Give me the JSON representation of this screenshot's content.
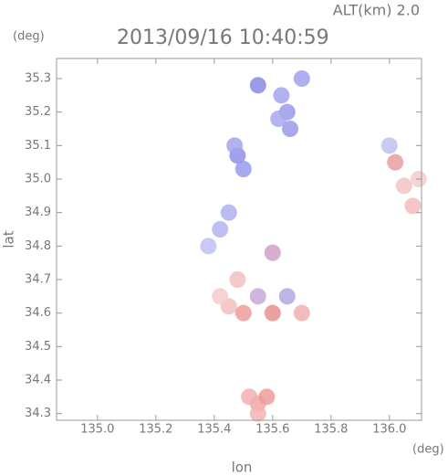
{
  "chart_data": {
    "type": "scatter",
    "title": "2013/09/16 10:40:59",
    "altitude_label": "ALT(km) 2.0",
    "y_unit": "(deg)",
    "x_unit": "(deg)",
    "xlabel": "lon",
    "ylabel": "lat",
    "xlim": [
      134.86,
      136.11
    ],
    "ylim": [
      34.28,
      35.36
    ],
    "xticks": [
      {
        "value": 135,
        "label": "135.0"
      },
      135.2,
      135.4,
      135.6,
      135.8,
      {
        "value": 136,
        "label": "136.0"
      }
    ],
    "yticks": [
      35.3,
      35.2,
      35.1,
      {
        "value": 35,
        "label": "35.0"
      },
      34.9,
      34.8,
      34.7,
      34.6,
      34.5,
      34.4,
      34.3
    ],
    "x": [
      135.65,
      135.63,
      135.66,
      135.62,
      135.55,
      135.7,
      135.48,
      135.5,
      135.47,
      135.42,
      135.38,
      135.45,
      135.45,
      135.42,
      135.5,
      135.55,
      135.6,
      135.65,
      135.7,
      135.48,
      135.6,
      135.55,
      135.52,
      135.58,
      135.55,
      136.05,
      136.1,
      136.08,
      136.02,
      136.0
    ],
    "y": [
      35.2,
      35.25,
      35.15,
      35.18,
      35.28,
      35.3,
      35.07,
      35.03,
      35.1,
      34.85,
      34.8,
      34.9,
      34.62,
      34.65,
      34.6,
      34.65,
      34.6,
      34.65,
      34.6,
      34.7,
      34.78,
      34.33,
      34.35,
      34.35,
      34.3,
      34.98,
      35.0,
      34.92,
      35.05,
      35.1
    ],
    "colors": [
      "#9a9aea",
      "#a4a4ee",
      "#9a9aea",
      "#a8a8f0",
      "#8a8ae6",
      "#a0a0ee",
      "#9090e8",
      "#9a9aea",
      "#a4a4ee",
      "#b4b4f2",
      "#c0c0f4",
      "#b0b0f0",
      "#f2c0c0",
      "#f4caca",
      "#ee9c9c",
      "#c8a8d8",
      "#e89090",
      "#b0a8e0",
      "#f0b0b0",
      "#f2c0c0",
      "#d0a0c8",
      "#f0a8a8",
      "#f2b0b0",
      "#ee9c9c",
      "#f4b4b4",
      "#f4c4c4",
      "#f6cccc",
      "#f2bcbc",
      "#e8a0a0",
      "#c0c0f0"
    ]
  }
}
